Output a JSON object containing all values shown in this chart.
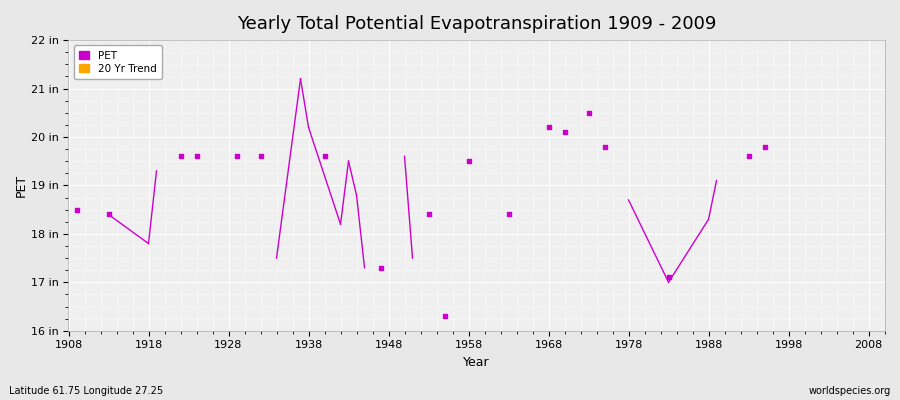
{
  "title": "Yearly Total Potential Evapotranspiration 1909 - 2009",
  "xlabel": "Year",
  "ylabel": "PET",
  "subtitle_left": "Latitude 61.75 Longitude 27.25",
  "subtitle_right": "worldspecies.org",
  "xlim": [
    1908,
    2010
  ],
  "ylim": [
    16,
    22
  ],
  "yticks": [
    16,
    17,
    18,
    19,
    20,
    21,
    22
  ],
  "ytick_labels": [
    "16 in",
    "17 in",
    "18 in",
    "19 in",
    "20 in",
    "21 in",
    "22 in"
  ],
  "xticks": [
    1908,
    1918,
    1928,
    1938,
    1948,
    1958,
    1968,
    1978,
    1988,
    1998,
    2008
  ],
  "bg_color": "#e8e8e8",
  "plot_bg_color": "#efefef",
  "grid_color": "#ffffff",
  "pet_color": "#cc00cc",
  "trend_color": "#cc00cc",
  "isolated_points": [
    [
      1909,
      18.5
    ],
    [
      1913,
      18.4
    ],
    [
      1922,
      19.6
    ],
    [
      1924,
      19.6
    ],
    [
      1929,
      19.6
    ],
    [
      1932,
      19.6
    ],
    [
      1940,
      19.6
    ],
    [
      1947,
      17.3
    ],
    [
      1953,
      18.4
    ],
    [
      1955,
      16.3
    ],
    [
      1958,
      19.5
    ],
    [
      1963,
      18.4
    ],
    [
      1968,
      20.2
    ],
    [
      1970,
      20.1
    ],
    [
      1973,
      20.5
    ],
    [
      1975,
      19.8
    ],
    [
      1983,
      17.1
    ],
    [
      1993,
      19.6
    ],
    [
      1995,
      19.8
    ]
  ],
  "trend_lines": [
    [
      [
        1913,
        18.4
      ],
      [
        1918,
        17.8
      ]
    ],
    [
      [
        1918,
        17.8
      ],
      [
        1919,
        19.3
      ]
    ],
    [
      [
        1934,
        17.5
      ],
      [
        1937,
        21.2
      ]
    ],
    [
      [
        1937,
        21.2
      ],
      [
        1938,
        20.2
      ]
    ],
    [
      [
        1938,
        20.2
      ],
      [
        1942,
        18.2
      ]
    ],
    [
      [
        1942,
        18.2
      ],
      [
        1943,
        19.5
      ]
    ],
    [
      [
        1943,
        19.5
      ],
      [
        1944,
        18.8
      ]
    ],
    [
      [
        1944,
        18.8
      ],
      [
        1945,
        17.3
      ]
    ],
    [
      [
        1950,
        19.6
      ],
      [
        1951,
        17.5
      ]
    ],
    [
      [
        1978,
        18.7
      ],
      [
        1983,
        17.0
      ]
    ],
    [
      [
        1983,
        17.0
      ],
      [
        1988,
        18.3
      ]
    ],
    [
      [
        1988,
        18.3
      ],
      [
        1989,
        19.1
      ]
    ]
  ]
}
